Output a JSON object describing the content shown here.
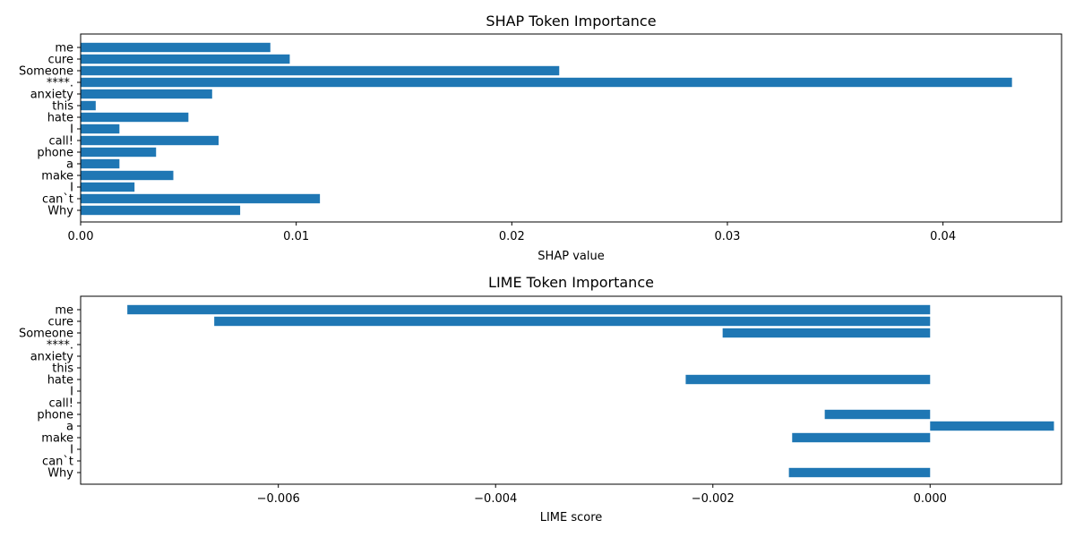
{
  "chart_data": [
    {
      "type": "bar",
      "orientation": "horizontal",
      "title": "SHAP Token Importance",
      "xlabel": "SHAP value",
      "ylabel": "",
      "xlim": [
        0.0,
        0.0455
      ],
      "xticks": [
        "0.00",
        "0.01",
        "0.02",
        "0.03",
        "0.04"
      ],
      "xtick_values": [
        0.0,
        0.01,
        0.02,
        0.03,
        0.04
      ],
      "categories": [
        "Why",
        "can`t",
        "I",
        "make",
        "a",
        "phone",
        "call!",
        "I",
        "hate",
        "this",
        "anxiety",
        "****.",
        "Someone",
        "cure",
        "me"
      ],
      "values": [
        0.0074,
        0.0111,
        0.0025,
        0.0043,
        0.0018,
        0.0035,
        0.0064,
        0.0018,
        0.005,
        0.0007,
        0.0061,
        0.0432,
        0.0222,
        0.0097,
        0.0088
      ],
      "color": "#1f77b4",
      "grid": false
    },
    {
      "type": "bar",
      "orientation": "horizontal",
      "title": "LIME Token Importance",
      "xlabel": "LIME score",
      "ylabel": "",
      "xlim": [
        -0.00782,
        0.00121
      ],
      "xticks": [
        "−0.006",
        "−0.004",
        "−0.002",
        "0.000"
      ],
      "xtick_values": [
        -0.006,
        -0.004,
        -0.002,
        0.0
      ],
      "categories": [
        "Why",
        "can`t",
        "I",
        "make",
        "a",
        "phone",
        "call!",
        "I",
        "hate",
        "this",
        "anxiety",
        "****.",
        "Someone",
        "cure",
        "me"
      ],
      "values": [
        -0.0013,
        0.0,
        0.0,
        -0.00127,
        0.00114,
        -0.00097,
        0.0,
        0.0,
        -0.00225,
        0.0,
        0.0,
        0.0,
        -0.00191,
        -0.00659,
        -0.00739
      ],
      "color": "#1f77b4",
      "grid": false
    }
  ]
}
